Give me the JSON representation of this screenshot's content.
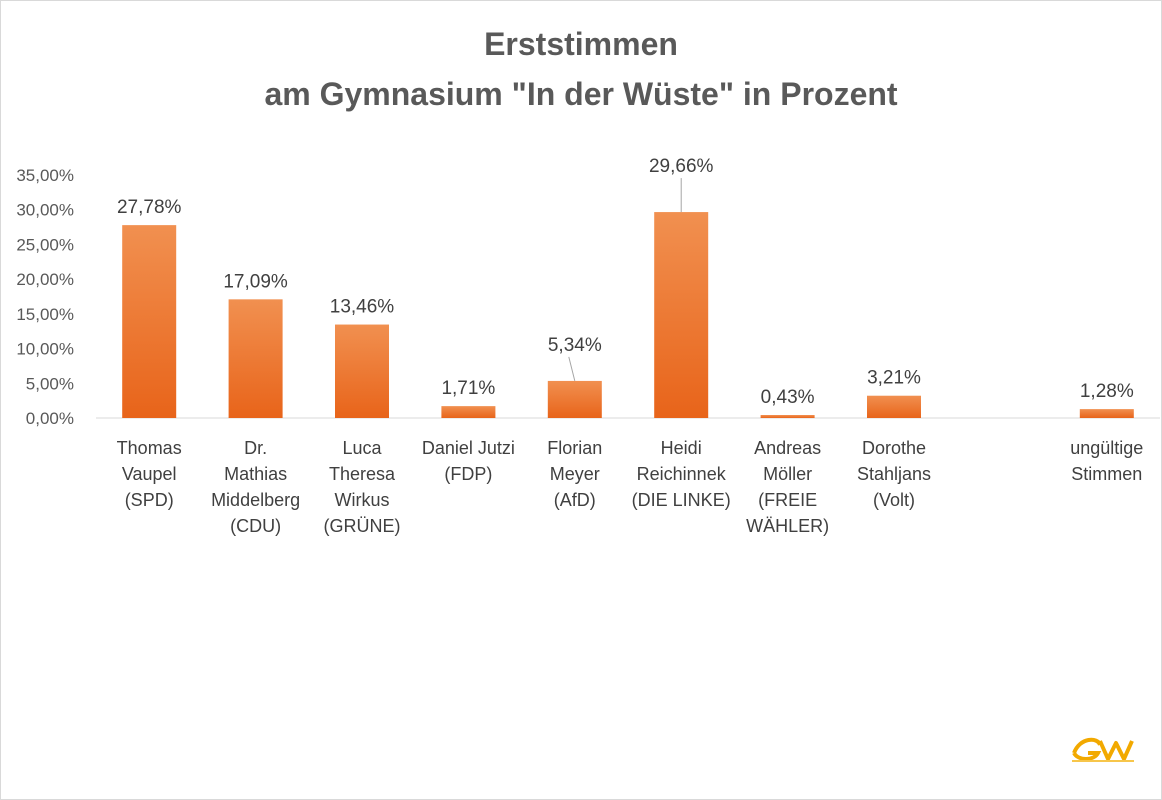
{
  "chart_data": {
    "type": "bar",
    "title_lines": [
      "Erststimmen",
      "am Gymnasium \"In der Wüste\" in Prozent"
    ],
    "categories": [
      [
        "Thomas",
        "Vaupel",
        "(SPD)"
      ],
      [
        "Dr.",
        "Mathias",
        "Middelberg",
        "(CDU)"
      ],
      [
        "Luca",
        "Theresa",
        "Wirkus",
        "(GRÜNE)"
      ],
      [
        "Daniel Jutzi",
        "(FDP)"
      ],
      [
        "Florian",
        "Meyer",
        "(AfD)"
      ],
      [
        "Heidi",
        "Reichinnek",
        "(DIE LINKE)"
      ],
      [
        "Andreas",
        "Möller",
        "(FREIE",
        "WÄHLER)"
      ],
      [
        "Dorothe",
        "Stahljans",
        "(Volt)"
      ],
      [],
      [
        "ungültige",
        "Stimmen"
      ]
    ],
    "values": [
      27.78,
      17.09,
      13.46,
      1.71,
      5.34,
      29.66,
      0.43,
      3.21,
      null,
      1.28
    ],
    "value_labels": [
      "27,78%",
      "17,09%",
      "13,46%",
      "1,71%",
      "5,34%",
      "29,66%",
      "0,43%",
      "3,21%",
      null,
      "1,28%"
    ],
    "ylim": [
      0,
      35
    ],
    "ytick_labels": [
      "0,00%",
      "5,00%",
      "10,00%",
      "15,00%",
      "20,00%",
      "25,00%",
      "30,00%",
      "35,00%"
    ],
    "grid": false,
    "legend": "none",
    "bar_color_top": "#f19050",
    "bar_color_bottom": "#e8641a"
  },
  "logo_icon": "gdw-logo-icon"
}
